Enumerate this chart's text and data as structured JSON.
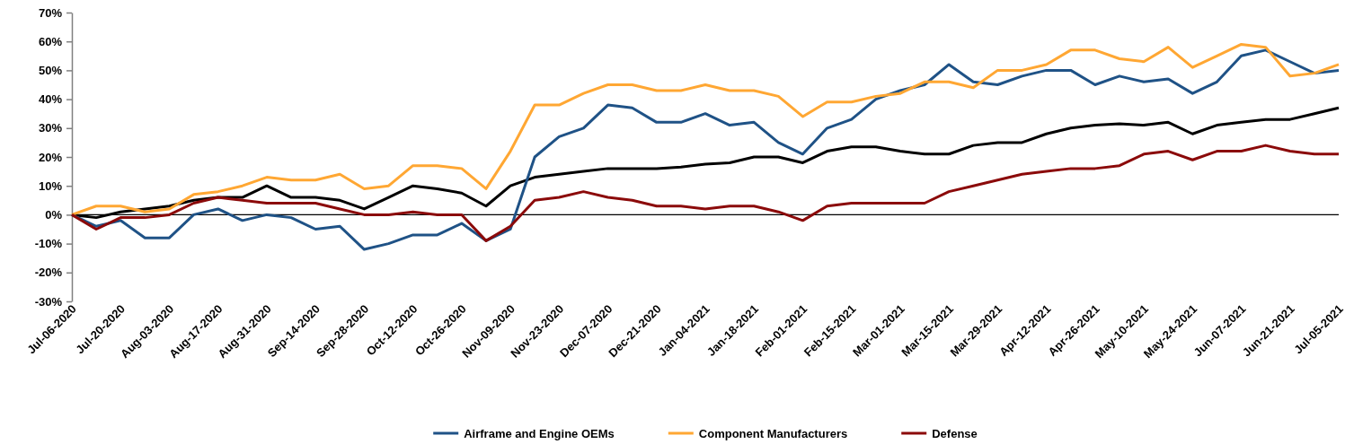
{
  "chart_data": {
    "type": "line",
    "x": [
      "2020-07-06",
      "2020-07-13",
      "2020-07-20",
      "2020-07-27",
      "2020-08-03",
      "2020-08-10",
      "2020-08-17",
      "2020-08-24",
      "2020-08-31",
      "2020-09-07",
      "2020-09-14",
      "2020-09-21",
      "2020-09-28",
      "2020-10-05",
      "2020-10-12",
      "2020-10-19",
      "2020-10-26",
      "2020-11-02",
      "2020-11-09",
      "2020-11-16",
      "2020-11-23",
      "2020-11-30",
      "2020-12-07",
      "2020-12-14",
      "2020-12-21",
      "2020-12-28",
      "2021-01-04",
      "2021-01-11",
      "2021-01-18",
      "2021-01-25",
      "2021-02-01",
      "2021-02-08",
      "2021-02-15",
      "2021-02-22",
      "2021-03-01",
      "2021-03-08",
      "2021-03-15",
      "2021-03-22",
      "2021-03-29",
      "2021-04-05",
      "2021-04-12",
      "2021-04-19",
      "2021-04-26",
      "2021-05-03",
      "2021-05-10",
      "2021-05-17",
      "2021-05-24",
      "2021-05-31",
      "2021-06-07",
      "2021-06-14",
      "2021-06-21",
      "2021-06-28",
      "2021-07-05"
    ],
    "series": [
      {
        "color": "#000000",
        "values": [
          0,
          -1,
          1,
          2,
          3,
          5,
          6,
          6,
          10,
          6,
          6,
          5,
          2,
          6,
          10,
          9,
          7.5,
          3,
          10,
          13,
          14,
          15,
          16,
          16,
          16,
          16.5,
          17.5,
          18,
          20,
          20,
          18,
          22,
          23.5,
          23.5,
          22,
          21,
          21,
          24,
          25,
          25,
          28,
          30,
          31,
          31.5,
          31,
          32,
          28,
          31,
          32,
          33,
          33,
          35,
          37
        ]
      },
      {
        "name": "Airframe and Engine OEMs",
        "color": "#1f5286",
        "values": [
          0,
          -4,
          -2,
          -8,
          -8,
          0,
          2,
          -2,
          0,
          -1,
          -5,
          -4,
          -12,
          -10,
          -7,
          -7,
          -3,
          -9,
          -5,
          20,
          27,
          30,
          38,
          37,
          32,
          32,
          35,
          31,
          32,
          25,
          21,
          30,
          33,
          40,
          43,
          45,
          52,
          46,
          45,
          48,
          50,
          50,
          45,
          48,
          46,
          47,
          42,
          46,
          55,
          57,
          53,
          49,
          50
        ]
      },
      {
        "name": "Component Manufacturers",
        "color": "#ffa733",
        "values": [
          0,
          3,
          3,
          1,
          2,
          7,
          8,
          10,
          13,
          12,
          12,
          14,
          9,
          10,
          17,
          17,
          16,
          9,
          22,
          38,
          38,
          42,
          45,
          45,
          43,
          43,
          45,
          43,
          43,
          41,
          34,
          39,
          39,
          41,
          42,
          46,
          46,
          44,
          50,
          50,
          52,
          57,
          57,
          54,
          53,
          58,
          51,
          55,
          59,
          58,
          48,
          49,
          52
        ]
      },
      {
        "name": "Defense",
        "color": "#8b0a0a",
        "values": [
          0,
          -5,
          -1,
          -1,
          0,
          4,
          6,
          5,
          4,
          4,
          4,
          2,
          0,
          0,
          1,
          0,
          0,
          -9,
          -4,
          5,
          6,
          8,
          6,
          5,
          3,
          3,
          2,
          3,
          3,
          1,
          -2,
          3,
          4,
          4,
          4,
          4,
          8,
          10,
          12,
          14,
          15,
          16,
          16,
          17,
          21,
          22,
          19,
          22,
          22,
          24,
          22,
          21,
          21
        ]
      }
    ],
    "xlim": [
      "2020-07-06",
      "2021-07-05"
    ],
    "xticks": [
      {
        "value": "2020-07-06",
        "label": "Jul-06-2020"
      },
      {
        "value": "2020-07-20",
        "label": "Jul-20-2020"
      },
      {
        "value": "2020-08-03",
        "label": "Aug-03-2020"
      },
      {
        "value": "2020-08-17",
        "label": "Aug-17-2020"
      },
      {
        "value": "2020-08-31",
        "label": "Aug-31-2020"
      },
      {
        "value": "2020-09-14",
        "label": "Sep-14-2020"
      },
      {
        "value": "2020-09-28",
        "label": "Sep-28-2020"
      },
      {
        "value": "2020-10-12",
        "label": "Oct-12-2020"
      },
      {
        "value": "2020-10-26",
        "label": "Oct-26-2020"
      },
      {
        "value": "2020-11-09",
        "label": "Nov-09-2020"
      },
      {
        "value": "2020-11-23",
        "label": "Nov-23-2020"
      },
      {
        "value": "2020-12-07",
        "label": "Dec-07-2020"
      },
      {
        "value": "2020-12-21",
        "label": "Dec-21-2020"
      },
      {
        "value": "2021-01-04",
        "label": "Jan-04-2021"
      },
      {
        "value": "2021-01-18",
        "label": "Jan-18-2021"
      },
      {
        "value": "2021-02-01",
        "label": "Feb-01-2021"
      },
      {
        "value": "2021-02-15",
        "label": "Feb-15-2021"
      },
      {
        "value": "2021-03-01",
        "label": "Mar-01-2021"
      },
      {
        "value": "2021-03-15",
        "label": "Mar-15-2021"
      },
      {
        "value": "2021-03-29",
        "label": "Mar-29-2021"
      },
      {
        "value": "2021-04-12",
        "label": "Apr-12-2021"
      },
      {
        "value": "2021-04-26",
        "label": "Apr-26-2021"
      },
      {
        "value": "2021-05-10",
        "label": "May-10-2021"
      },
      {
        "value": "2021-05-24",
        "label": "May-24-2021"
      },
      {
        "value": "2021-06-07",
        "label": "Jun-07-2021"
      },
      {
        "value": "2021-06-21",
        "label": "Jun-21-2021"
      },
      {
        "value": "2021-07-05",
        "label": "Jul-05-2021"
      }
    ],
    "ylim": [
      -30,
      70
    ],
    "yticks": [
      {
        "value": -30,
        "label": "-30%"
      },
      {
        "value": -20,
        "label": "-20%"
      },
      {
        "value": -10,
        "label": "-10%"
      },
      {
        "value": 0,
        "label": "0%"
      },
      {
        "value": 10,
        "label": "10%"
      },
      {
        "value": 20,
        "label": "20%"
      },
      {
        "value": 30,
        "label": "30%"
      },
      {
        "value": 40,
        "label": "40%"
      },
      {
        "value": 50,
        "label": "50%"
      },
      {
        "value": 60,
        "label": "60%"
      },
      {
        "value": 70,
        "label": "70%"
      }
    ],
    "legend": "bottom",
    "marker": "none",
    "line_style": "solid"
  }
}
